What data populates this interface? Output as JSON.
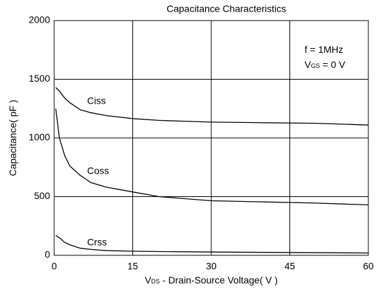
{
  "chart_data": {
    "type": "line",
    "title": "Capacitance Characteristics",
    "xlabel_parts": [
      "V",
      "DS",
      " - Drain-Source Voltage( V )"
    ],
    "ylabel": "Capacitance( pF )",
    "annotations": [
      [
        "f  =  1MHz"
      ],
      [
        "V",
        "GS",
        " = 0 V"
      ]
    ],
    "x": [
      0.3,
      1,
      2,
      3,
      5,
      7,
      10,
      15,
      20,
      30,
      40,
      50,
      60
    ],
    "series": [
      {
        "name": "Ciss",
        "color": "#000000",
        "values": [
          1430,
          1400,
          1340,
          1300,
          1240,
          1215,
          1190,
          1165,
          1150,
          1135,
          1130,
          1125,
          1110
        ]
      },
      {
        "name": "Coss",
        "color": "#000000",
        "values": [
          1250,
          1000,
          850,
          760,
          680,
          620,
          580,
          540,
          500,
          465,
          455,
          445,
          430
        ]
      },
      {
        "name": "Crss",
        "color": "#000000",
        "values": [
          170,
          150,
          110,
          90,
          60,
          50,
          40,
          35,
          32,
          28,
          25,
          22,
          20
        ]
      }
    ],
    "xlim": [
      0,
      60
    ],
    "xticks": [
      0,
      15,
      30,
      45,
      60
    ],
    "ylim": [
      0,
      2000
    ],
    "yticks": [
      0,
      500,
      1000,
      1500,
      2000
    ],
    "grid": true
  }
}
